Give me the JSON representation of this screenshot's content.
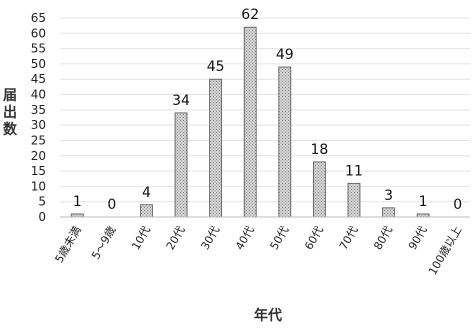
{
  "chart_data": {
    "type": "bar",
    "categories": [
      "5歳未満",
      "5～9歳",
      "10代",
      "20代",
      "30代",
      "40代",
      "50代",
      "60代",
      "70代",
      "80代",
      "90代",
      "100歳以上"
    ],
    "values": [
      1,
      0,
      4,
      34,
      45,
      62,
      49,
      18,
      11,
      3,
      1,
      0
    ],
    "xlabel": "年代",
    "ylabel": "届出数",
    "ylim": [
      0,
      65
    ],
    "yticks": [
      0,
      5,
      10,
      15,
      20,
      25,
      30,
      35,
      40,
      45,
      50,
      55,
      60,
      65
    ],
    "grid": true,
    "bar_pattern": "dotted-gray"
  }
}
